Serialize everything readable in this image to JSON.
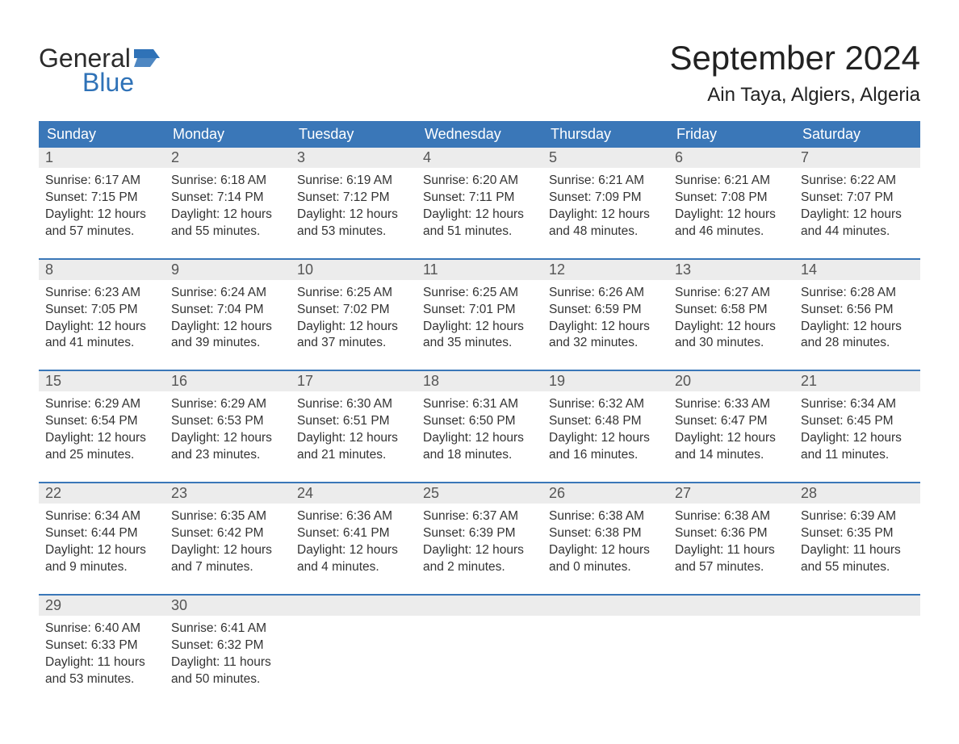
{
  "logo": {
    "line1": "General",
    "line2": "Blue",
    "accent_color": "#2f72b7"
  },
  "header": {
    "month_title": "September 2024",
    "location": "Ain Taya, Algiers, Algeria"
  },
  "colors": {
    "header_bg": "#3a77b8",
    "daynum_bg": "#ececec",
    "week_border": "#3a77b8",
    "text": "#333333",
    "muted": "#555555"
  },
  "weekdays": [
    "Sunday",
    "Monday",
    "Tuesday",
    "Wednesday",
    "Thursday",
    "Friday",
    "Saturday"
  ],
  "days": [
    {
      "n": "1",
      "sunrise": "6:17 AM",
      "sunset": "7:15 PM",
      "daylight": "12 hours and 57 minutes."
    },
    {
      "n": "2",
      "sunrise": "6:18 AM",
      "sunset": "7:14 PM",
      "daylight": "12 hours and 55 minutes."
    },
    {
      "n": "3",
      "sunrise": "6:19 AM",
      "sunset": "7:12 PM",
      "daylight": "12 hours and 53 minutes."
    },
    {
      "n": "4",
      "sunrise": "6:20 AM",
      "sunset": "7:11 PM",
      "daylight": "12 hours and 51 minutes."
    },
    {
      "n": "5",
      "sunrise": "6:21 AM",
      "sunset": "7:09 PM",
      "daylight": "12 hours and 48 minutes."
    },
    {
      "n": "6",
      "sunrise": "6:21 AM",
      "sunset": "7:08 PM",
      "daylight": "12 hours and 46 minutes."
    },
    {
      "n": "7",
      "sunrise": "6:22 AM",
      "sunset": "7:07 PM",
      "daylight": "12 hours and 44 minutes."
    },
    {
      "n": "8",
      "sunrise": "6:23 AM",
      "sunset": "7:05 PM",
      "daylight": "12 hours and 41 minutes."
    },
    {
      "n": "9",
      "sunrise": "6:24 AM",
      "sunset": "7:04 PM",
      "daylight": "12 hours and 39 minutes."
    },
    {
      "n": "10",
      "sunrise": "6:25 AM",
      "sunset": "7:02 PM",
      "daylight": "12 hours and 37 minutes."
    },
    {
      "n": "11",
      "sunrise": "6:25 AM",
      "sunset": "7:01 PM",
      "daylight": "12 hours and 35 minutes."
    },
    {
      "n": "12",
      "sunrise": "6:26 AM",
      "sunset": "6:59 PM",
      "daylight": "12 hours and 32 minutes."
    },
    {
      "n": "13",
      "sunrise": "6:27 AM",
      "sunset": "6:58 PM",
      "daylight": "12 hours and 30 minutes."
    },
    {
      "n": "14",
      "sunrise": "6:28 AM",
      "sunset": "6:56 PM",
      "daylight": "12 hours and 28 minutes."
    },
    {
      "n": "15",
      "sunrise": "6:29 AM",
      "sunset": "6:54 PM",
      "daylight": "12 hours and 25 minutes."
    },
    {
      "n": "16",
      "sunrise": "6:29 AM",
      "sunset": "6:53 PM",
      "daylight": "12 hours and 23 minutes."
    },
    {
      "n": "17",
      "sunrise": "6:30 AM",
      "sunset": "6:51 PM",
      "daylight": "12 hours and 21 minutes."
    },
    {
      "n": "18",
      "sunrise": "6:31 AM",
      "sunset": "6:50 PM",
      "daylight": "12 hours and 18 minutes."
    },
    {
      "n": "19",
      "sunrise": "6:32 AM",
      "sunset": "6:48 PM",
      "daylight": "12 hours and 16 minutes."
    },
    {
      "n": "20",
      "sunrise": "6:33 AM",
      "sunset": "6:47 PM",
      "daylight": "12 hours and 14 minutes."
    },
    {
      "n": "21",
      "sunrise": "6:34 AM",
      "sunset": "6:45 PM",
      "daylight": "12 hours and 11 minutes."
    },
    {
      "n": "22",
      "sunrise": "6:34 AM",
      "sunset": "6:44 PM",
      "daylight": "12 hours and 9 minutes."
    },
    {
      "n": "23",
      "sunrise": "6:35 AM",
      "sunset": "6:42 PM",
      "daylight": "12 hours and 7 minutes."
    },
    {
      "n": "24",
      "sunrise": "6:36 AM",
      "sunset": "6:41 PM",
      "daylight": "12 hours and 4 minutes."
    },
    {
      "n": "25",
      "sunrise": "6:37 AM",
      "sunset": "6:39 PM",
      "daylight": "12 hours and 2 minutes."
    },
    {
      "n": "26",
      "sunrise": "6:38 AM",
      "sunset": "6:38 PM",
      "daylight": "12 hours and 0 minutes."
    },
    {
      "n": "27",
      "sunrise": "6:38 AM",
      "sunset": "6:36 PM",
      "daylight": "11 hours and 57 minutes."
    },
    {
      "n": "28",
      "sunrise": "6:39 AM",
      "sunset": "6:35 PM",
      "daylight": "11 hours and 55 minutes."
    },
    {
      "n": "29",
      "sunrise": "6:40 AM",
      "sunset": "6:33 PM",
      "daylight": "11 hours and 53 minutes."
    },
    {
      "n": "30",
      "sunrise": "6:41 AM",
      "sunset": "6:32 PM",
      "daylight": "11 hours and 50 minutes."
    }
  ],
  "labels": {
    "sunrise": "Sunrise:",
    "sunset": "Sunset:",
    "daylight": "Daylight:"
  },
  "layout": {
    "start_weekday": 0,
    "cols": 7
  }
}
